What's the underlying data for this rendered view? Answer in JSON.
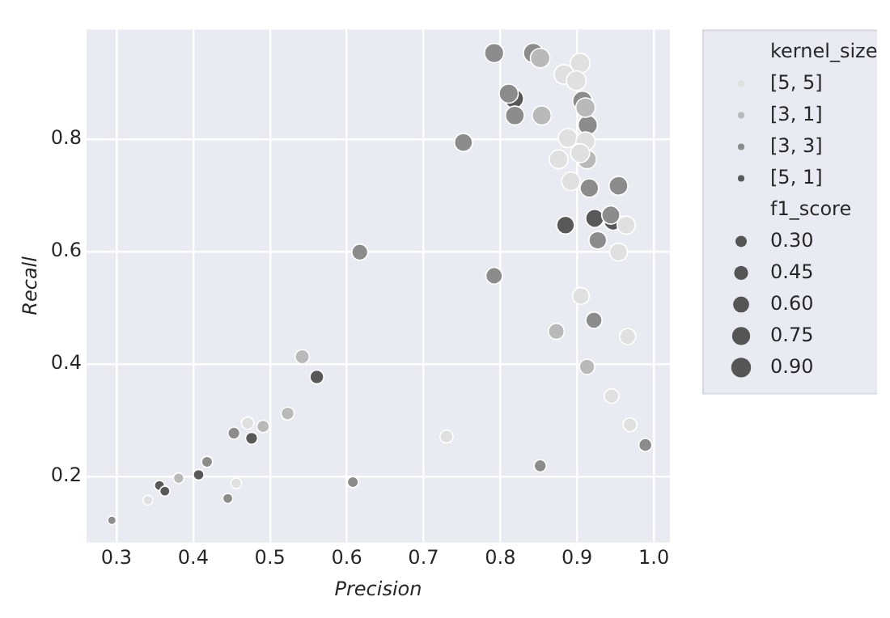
{
  "chart_data": {
    "type": "bubble",
    "xlabel": "Precision",
    "ylabel": "Recall",
    "legend_title": "kernel_size",
    "annotations": [
      "f1_score"
    ],
    "xlim": [
      0.261,
      1.021
    ],
    "xticks": [
      0.3,
      0.4,
      0.5,
      0.6,
      0.7,
      0.8,
      0.9,
      {
        "value": 1.0,
        "label": "1.0"
      }
    ],
    "ylim": [
      0.083,
      0.995
    ],
    "yticks": [
      0.2,
      0.4,
      0.6,
      0.8
    ],
    "grid": true,
    "legend": "right",
    "marker": "circle",
    "size_legend": [
      {
        "value": 0.3,
        "label": "0.30"
      },
      0.45,
      {
        "value": 0.6,
        "label": "0.60"
      },
      0.75,
      {
        "value": 0.9,
        "label": "0.90"
      }
    ],
    "series": [
      {
        "name": "[5, 5]",
        "color": "#e0e0e0",
        "x": [
          0.904,
          0.883,
          0.899,
          0.888,
          0.911,
          0.904,
          0.876,
          0.892,
          0.964,
          0.954,
          0.905,
          0.966,
          0.945,
          0.969,
          0.73,
          0.471,
          0.341,
          0.456
        ],
        "values": [
          0.935,
          0.915,
          0.904,
          0.802,
          0.796,
          0.775,
          0.764,
          0.725,
          0.647,
          0.599,
          0.521,
          0.449,
          0.343,
          0.292,
          0.271,
          0.295,
          0.158,
          0.188
        ],
        "sizes": [
          0.92,
          0.9,
          0.9,
          0.84,
          0.85,
          0.84,
          0.82,
          0.8,
          0.77,
          0.74,
          0.66,
          0.61,
          0.5,
          0.45,
          0.4,
          0.36,
          0.22,
          0.27
        ]
      },
      {
        "name": "[3, 1]",
        "color": "#b9b9b9",
        "x": [
          0.852,
          0.854,
          0.911,
          0.913,
          0.873,
          0.913,
          0.542,
          0.523,
          0.491,
          0.381
        ],
        "values": [
          0.944,
          0.842,
          0.856,
          0.764,
          0.458,
          0.395,
          0.413,
          0.312,
          0.289,
          0.197
        ],
        "sizes": [
          0.9,
          0.85,
          0.88,
          0.83,
          0.6,
          0.55,
          0.47,
          0.39,
          0.36,
          0.26
        ]
      },
      {
        "name": "[3, 3]",
        "color": "#8c8c8c",
        "x": [
          0.792,
          0.843,
          0.811,
          0.819,
          0.907,
          0.914,
          0.752,
          0.916,
          0.954,
          0.944,
          0.927,
          0.617,
          0.792,
          0.922,
          0.989,
          0.852,
          0.608,
          0.453,
          0.418,
          0.445,
          0.294
        ],
        "values": [
          0.953,
          0.953,
          0.881,
          0.842,
          0.868,
          0.825,
          0.794,
          0.713,
          0.717,
          0.665,
          0.62,
          0.599,
          0.557,
          0.478,
          0.256,
          0.219,
          0.19,
          0.277,
          0.226,
          0.161,
          0.122
        ],
        "sizes": [
          0.87,
          0.9,
          0.85,
          0.83,
          0.89,
          0.87,
          0.77,
          0.8,
          0.82,
          0.78,
          0.74,
          0.61,
          0.65,
          0.63,
          0.41,
          0.35,
          0.29,
          0.34,
          0.29,
          0.24,
          0.17
        ]
      },
      {
        "name": "[5, 1]",
        "color": "#585858",
        "x": [
          0.818,
          0.885,
          0.923,
          0.947,
          0.561,
          0.476,
          0.407,
          0.356,
          0.363
        ],
        "values": [
          0.872,
          0.647,
          0.659,
          0.654,
          0.377,
          0.268,
          0.203,
          0.184,
          0.174
        ],
        "sizes": [
          0.84,
          0.75,
          0.77,
          0.77,
          0.45,
          0.34,
          0.27,
          0.24,
          0.24
        ]
      }
    ]
  }
}
